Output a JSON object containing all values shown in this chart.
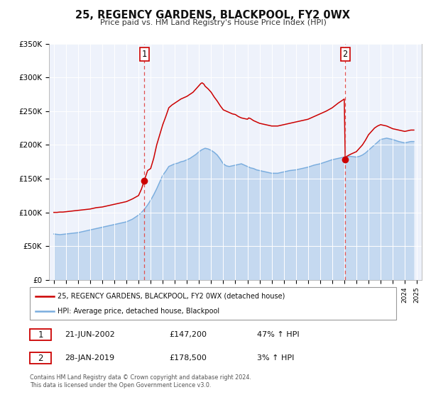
{
  "title": "25, REGENCY GARDENS, BLACKPOOL, FY2 0WX",
  "subtitle": "Price paid vs. HM Land Registry's House Price Index (HPI)",
  "plot_bg_color": "#eef2fb",
  "hpi_line_color": "#7aadde",
  "hpi_fill_color": "#c5d9f0",
  "price_color": "#cc0000",
  "vline_color": "#e05050",
  "marker1_date": 2002.47,
  "marker1_price": 147200,
  "marker2_date": 2019.075,
  "marker2_price": 178500,
  "ylim": [
    0,
    350000
  ],
  "xlim": [
    1994.6,
    2025.4
  ],
  "yticks": [
    0,
    50000,
    100000,
    150000,
    200000,
    250000,
    300000,
    350000
  ],
  "ytick_labels": [
    "£0",
    "£50K",
    "£100K",
    "£150K",
    "£200K",
    "£250K",
    "£300K",
    "£350K"
  ],
  "xticks": [
    1995,
    1996,
    1997,
    1998,
    1999,
    2000,
    2001,
    2002,
    2003,
    2004,
    2005,
    2006,
    2007,
    2008,
    2009,
    2010,
    2011,
    2012,
    2013,
    2014,
    2015,
    2016,
    2017,
    2018,
    2019,
    2020,
    2021,
    2022,
    2023,
    2024,
    2025
  ],
  "legend_label_red": "25, REGENCY GARDENS, BLACKPOOL, FY2 0WX (detached house)",
  "legend_label_blue": "HPI: Average price, detached house, Blackpool",
  "annotation1_date": "21-JUN-2002",
  "annotation1_price": "£147,200",
  "annotation1_hpi": "47% ↑ HPI",
  "annotation2_date": "28-JAN-2019",
  "annotation2_price": "£178,500",
  "annotation2_hpi": "3% ↑ HPI",
  "footer": "Contains HM Land Registry data © Crown copyright and database right 2024.\nThis data is licensed under the Open Government Licence v3.0.",
  "hpi_data": [
    [
      1995.0,
      68000
    ],
    [
      1995.25,
      67500
    ],
    [
      1995.5,
      67000
    ],
    [
      1995.75,
      67500
    ],
    [
      1996.0,
      68000
    ],
    [
      1996.25,
      68500
    ],
    [
      1996.5,
      69000
    ],
    [
      1996.75,
      69500
    ],
    [
      1997.0,
      70000
    ],
    [
      1997.25,
      71000
    ],
    [
      1997.5,
      72000
    ],
    [
      1997.75,
      73000
    ],
    [
      1998.0,
      74000
    ],
    [
      1998.25,
      75000
    ],
    [
      1998.5,
      76000
    ],
    [
      1998.75,
      77000
    ],
    [
      1999.0,
      78000
    ],
    [
      1999.25,
      79000
    ],
    [
      1999.5,
      80000
    ],
    [
      1999.75,
      81000
    ],
    [
      2000.0,
      82000
    ],
    [
      2000.25,
      83000
    ],
    [
      2000.5,
      84000
    ],
    [
      2000.75,
      85000
    ],
    [
      2001.0,
      86000
    ],
    [
      2001.25,
      88000
    ],
    [
      2001.5,
      90000
    ],
    [
      2001.75,
      93000
    ],
    [
      2002.0,
      96000
    ],
    [
      2002.25,
      100000
    ],
    [
      2002.5,
      105000
    ],
    [
      2002.75,
      111000
    ],
    [
      2003.0,
      118000
    ],
    [
      2003.25,
      126000
    ],
    [
      2003.5,
      135000
    ],
    [
      2003.75,
      145000
    ],
    [
      2004.0,
      155000
    ],
    [
      2004.25,
      161000
    ],
    [
      2004.5,
      168000
    ],
    [
      2004.75,
      170000
    ],
    [
      2005.0,
      172000
    ],
    [
      2005.25,
      173000
    ],
    [
      2005.5,
      175000
    ],
    [
      2005.75,
      176000
    ],
    [
      2006.0,
      178000
    ],
    [
      2006.25,
      180000
    ],
    [
      2006.5,
      183000
    ],
    [
      2006.75,
      186000
    ],
    [
      2007.0,
      190000
    ],
    [
      2007.25,
      193000
    ],
    [
      2007.5,
      195000
    ],
    [
      2007.75,
      194000
    ],
    [
      2008.0,
      192000
    ],
    [
      2008.25,
      189000
    ],
    [
      2008.5,
      185000
    ],
    [
      2008.75,
      179000
    ],
    [
      2009.0,
      172000
    ],
    [
      2009.25,
      169000
    ],
    [
      2009.5,
      168000
    ],
    [
      2009.75,
      169000
    ],
    [
      2010.0,
      170000
    ],
    [
      2010.25,
      171000
    ],
    [
      2010.5,
      172000
    ],
    [
      2010.75,
      170000
    ],
    [
      2011.0,
      168000
    ],
    [
      2011.25,
      166000
    ],
    [
      2011.5,
      165000
    ],
    [
      2011.75,
      163000
    ],
    [
      2012.0,
      162000
    ],
    [
      2012.25,
      161000
    ],
    [
      2012.5,
      160000
    ],
    [
      2012.75,
      159000
    ],
    [
      2013.0,
      158000
    ],
    [
      2013.25,
      158000
    ],
    [
      2013.5,
      158000
    ],
    [
      2013.75,
      159000
    ],
    [
      2014.0,
      160000
    ],
    [
      2014.25,
      161000
    ],
    [
      2014.5,
      162000
    ],
    [
      2014.75,
      162500
    ],
    [
      2015.0,
      163000
    ],
    [
      2015.25,
      164000
    ],
    [
      2015.5,
      165000
    ],
    [
      2015.75,
      166000
    ],
    [
      2016.0,
      167000
    ],
    [
      2016.25,
      168500
    ],
    [
      2016.5,
      170000
    ],
    [
      2016.75,
      171000
    ],
    [
      2017.0,
      172000
    ],
    [
      2017.25,
      173500
    ],
    [
      2017.5,
      175000
    ],
    [
      2017.75,
      176500
    ],
    [
      2018.0,
      178000
    ],
    [
      2018.25,
      179000
    ],
    [
      2018.5,
      180000
    ],
    [
      2018.75,
      181000
    ],
    [
      2019.0,
      182000
    ],
    [
      2019.25,
      182500
    ],
    [
      2019.5,
      183000
    ],
    [
      2019.75,
      182500
    ],
    [
      2020.0,
      182000
    ],
    [
      2020.25,
      183000
    ],
    [
      2020.5,
      185000
    ],
    [
      2020.75,
      188000
    ],
    [
      2021.0,
      192000
    ],
    [
      2021.25,
      196000
    ],
    [
      2021.5,
      200000
    ],
    [
      2021.75,
      204000
    ],
    [
      2022.0,
      208000
    ],
    [
      2022.25,
      209000
    ],
    [
      2022.5,
      210000
    ],
    [
      2022.75,
      209000
    ],
    [
      2023.0,
      208000
    ],
    [
      2023.25,
      206500
    ],
    [
      2023.5,
      205000
    ],
    [
      2023.75,
      204000
    ],
    [
      2024.0,
      203000
    ],
    [
      2024.25,
      204000
    ],
    [
      2024.5,
      205000
    ],
    [
      2024.75,
      205000
    ]
  ],
  "price_data": [
    [
      1995.0,
      100000
    ],
    [
      1995.25,
      100000
    ],
    [
      1995.5,
      100500
    ],
    [
      1995.75,
      100500
    ],
    [
      1996.0,
      101000
    ],
    [
      1996.25,
      101500
    ],
    [
      1996.5,
      102000
    ],
    [
      1996.75,
      102500
    ],
    [
      1997.0,
      103000
    ],
    [
      1997.25,
      103500
    ],
    [
      1997.5,
      104000
    ],
    [
      1997.75,
      104500
    ],
    [
      1998.0,
      105000
    ],
    [
      1998.25,
      106000
    ],
    [
      1998.5,
      107000
    ],
    [
      1998.75,
      107500
    ],
    [
      1999.0,
      108000
    ],
    [
      1999.25,
      109000
    ],
    [
      1999.5,
      110000
    ],
    [
      1999.75,
      111000
    ],
    [
      2000.0,
      112000
    ],
    [
      2000.25,
      113000
    ],
    [
      2000.5,
      114000
    ],
    [
      2000.75,
      115000
    ],
    [
      2001.0,
      116000
    ],
    [
      2001.25,
      118000
    ],
    [
      2001.5,
      120000
    ],
    [
      2001.75,
      122500
    ],
    [
      2002.0,
      125000
    ],
    [
      2002.25,
      135000
    ],
    [
      2002.47,
      147200
    ],
    [
      2002.75,
      162000
    ],
    [
      2003.0,
      165000
    ],
    [
      2003.25,
      180000
    ],
    [
      2003.5,
      200000
    ],
    [
      2003.75,
      215000
    ],
    [
      2004.0,
      230000
    ],
    [
      2004.25,
      242000
    ],
    [
      2004.5,
      255000
    ],
    [
      2004.75,
      259000
    ],
    [
      2005.0,
      262000
    ],
    [
      2005.25,
      265000
    ],
    [
      2005.5,
      268000
    ],
    [
      2005.75,
      270000
    ],
    [
      2006.0,
      272000
    ],
    [
      2006.25,
      275000
    ],
    [
      2006.5,
      278000
    ],
    [
      2006.75,
      283000
    ],
    [
      2007.0,
      288000
    ],
    [
      2007.15,
      291000
    ],
    [
      2007.25,
      292000
    ],
    [
      2007.4,
      290000
    ],
    [
      2007.5,
      287000
    ],
    [
      2007.75,
      283000
    ],
    [
      2008.0,
      278000
    ],
    [
      2008.25,
      271000
    ],
    [
      2008.5,
      265000
    ],
    [
      2008.75,
      258000
    ],
    [
      2009.0,
      252000
    ],
    [
      2009.25,
      250000
    ],
    [
      2009.5,
      248000
    ],
    [
      2009.75,
      246000
    ],
    [
      2010.0,
      245000
    ],
    [
      2010.25,
      242000
    ],
    [
      2010.5,
      240000
    ],
    [
      2010.75,
      239000
    ],
    [
      2011.0,
      238000
    ],
    [
      2011.1,
      240000
    ],
    [
      2011.25,
      239000
    ],
    [
      2011.5,
      236000
    ],
    [
      2011.75,
      234000
    ],
    [
      2012.0,
      232000
    ],
    [
      2012.25,
      231000
    ],
    [
      2012.5,
      230000
    ],
    [
      2012.75,
      229000
    ],
    [
      2013.0,
      228000
    ],
    [
      2013.25,
      228000
    ],
    [
      2013.5,
      228000
    ],
    [
      2013.75,
      229000
    ],
    [
      2014.0,
      230000
    ],
    [
      2014.25,
      231000
    ],
    [
      2014.5,
      232000
    ],
    [
      2014.75,
      233000
    ],
    [
      2015.0,
      234000
    ],
    [
      2015.25,
      235000
    ],
    [
      2015.5,
      236000
    ],
    [
      2015.75,
      237000
    ],
    [
      2016.0,
      238000
    ],
    [
      2016.25,
      240000
    ],
    [
      2016.5,
      242000
    ],
    [
      2016.75,
      244000
    ],
    [
      2017.0,
      246000
    ],
    [
      2017.25,
      248000
    ],
    [
      2017.5,
      250000
    ],
    [
      2017.75,
      252500
    ],
    [
      2018.0,
      255000
    ],
    [
      2018.25,
      258500
    ],
    [
      2018.5,
      262000
    ],
    [
      2018.75,
      265000
    ],
    [
      2019.0,
      268000
    ],
    [
      2019.075,
      178500
    ],
    [
      2019.2,
      183000
    ],
    [
      2019.5,
      186000
    ],
    [
      2019.75,
      188000
    ],
    [
      2020.0,
      190000
    ],
    [
      2020.25,
      195000
    ],
    [
      2020.5,
      200000
    ],
    [
      2020.75,
      207000
    ],
    [
      2021.0,
      215000
    ],
    [
      2021.25,
      220000
    ],
    [
      2021.5,
      225000
    ],
    [
      2021.75,
      228000
    ],
    [
      2022.0,
      230000
    ],
    [
      2022.25,
      229000
    ],
    [
      2022.5,
      228000
    ],
    [
      2022.75,
      226000
    ],
    [
      2023.0,
      224000
    ],
    [
      2023.25,
      223000
    ],
    [
      2023.5,
      222000
    ],
    [
      2023.75,
      221000
    ],
    [
      2024.0,
      220000
    ],
    [
      2024.25,
      221000
    ],
    [
      2024.5,
      222000
    ],
    [
      2024.75,
      222000
    ]
  ]
}
